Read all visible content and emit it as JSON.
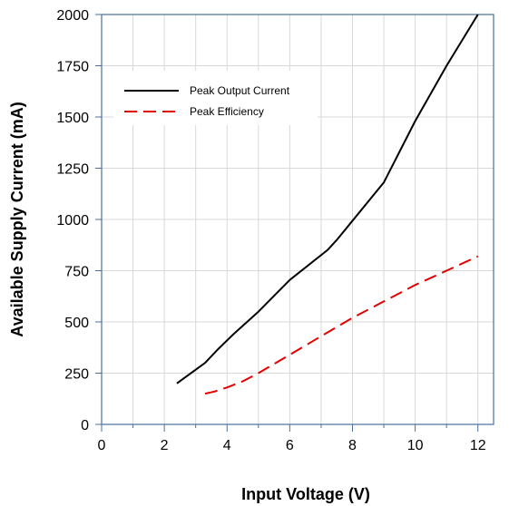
{
  "chart_data": {
    "type": "line",
    "xlabel": "Input Voltage (V)",
    "ylabel": "Available Supply Current (mA)",
    "xlim": [
      0,
      12.5
    ],
    "ylim": [
      0,
      2000
    ],
    "x_ticks": [
      0,
      2,
      4,
      6,
      8,
      10,
      12
    ],
    "y_ticks": [
      0,
      250,
      500,
      750,
      1000,
      1250,
      1500,
      1750,
      2000
    ],
    "grid": true,
    "legend_position": "top-left",
    "series": [
      {
        "name": "Peak Output Current",
        "color": "#000000",
        "style": "solid",
        "x": [
          2.4,
          3.3,
          3.7,
          4.2,
          5.0,
          6.0,
          7.2,
          7.5,
          9.0,
          10.0,
          11.0,
          12.0
        ],
        "y": [
          200,
          300,
          365,
          440,
          550,
          705,
          850,
          900,
          1180,
          1480,
          1750,
          2000
        ]
      },
      {
        "name": "Peak Efficiency",
        "color": "#e00000",
        "style": "dashed",
        "x": [
          3.3,
          3.6,
          4.0,
          4.5,
          5.0,
          6.0,
          7.0,
          8.0,
          9.0,
          10.0,
          11.0,
          12.0
        ],
        "y": [
          150,
          160,
          180,
          210,
          250,
          340,
          430,
          520,
          600,
          680,
          750,
          820
        ]
      }
    ]
  }
}
